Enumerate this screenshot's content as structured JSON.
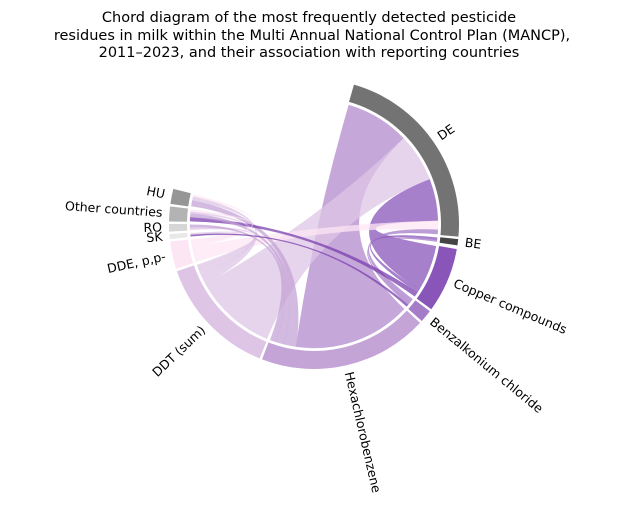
{
  "title": {
    "lines": [
      "Chord diagram of the most frequently detected pesticide",
      "residues in milk within the Multi Annual National Control Plan (MANCP),",
      "2011–2023, and their association with reporting countries"
    ]
  },
  "segments": [
    {
      "id": "DE",
      "label": "DE",
      "group": "country",
      "color": "#737373",
      "start": 16,
      "end": 95
    },
    {
      "id": "BE",
      "label": "BE",
      "group": "country",
      "color": "#454545",
      "start": 96,
      "end": 98.5
    },
    {
      "id": "copper",
      "label": "Copper compounds",
      "group": "residue",
      "color": "#8a55b9",
      "start": 100,
      "end": 126
    },
    {
      "id": "benzalkonium",
      "label": "Benzalkonium chloride",
      "group": "residue",
      "color": "#a57cc8",
      "start": 127,
      "end": 132
    },
    {
      "id": "hcb",
      "label": "Hexachlorobenzene",
      "group": "residue",
      "color": "#c4a3d6",
      "start": 133,
      "end": 201
    },
    {
      "id": "ddt",
      "label": "DDT (sum)",
      "group": "residue",
      "color": "#dec5e6",
      "start": 202,
      "end": 251
    },
    {
      "id": "dde",
      "label": "DDE, p,p-",
      "group": "residue",
      "color": "#fde6f4",
      "start": 252,
      "end": 263
    },
    {
      "id": "sk",
      "label": "SK",
      "group": "country",
      "color": "#e8e8e8",
      "start": 264,
      "end": 266
    },
    {
      "id": "ro",
      "label": "RO",
      "group": "country",
      "color": "#d6d6d6",
      "start": 267,
      "end": 270
    },
    {
      "id": "other",
      "label": "Other countries",
      "group": "country",
      "color": "#b3b3b3",
      "start": 271,
      "end": 277
    },
    {
      "id": "hu",
      "label": "HU",
      "group": "country",
      "color": "#969696",
      "start": 278,
      "end": 284
    }
  ],
  "links": [
    {
      "from": "DE",
      "to": "hcb",
      "value": 29,
      "color": "#b289cc"
    },
    {
      "from": "DE",
      "to": "ddt",
      "value": 22,
      "color": "#dec5e6"
    },
    {
      "from": "DE",
      "to": "copper",
      "value": 19,
      "color": "#8a55b9"
    },
    {
      "from": "DE",
      "to": "dde",
      "value": 4,
      "color": "#fde6f4"
    },
    {
      "from": "DE",
      "to": "benzalkonium",
      "value": 2,
      "color": "#a57cc8"
    },
    {
      "from": "BE",
      "to": "copper",
      "value": 1.5,
      "color": "#8a55b9"
    },
    {
      "from": "BE",
      "to": "benzalkonium",
      "value": 1,
      "color": "#a57cc8"
    },
    {
      "from": "HU",
      "to": "hcb",
      "value": 3,
      "color": "#c4a3d6"
    },
    {
      "from": "HU",
      "to": "ddt",
      "value": 2,
      "color": "#dec5e6"
    },
    {
      "from": "HU",
      "to": "dde",
      "value": 1,
      "color": "#fde6f4"
    },
    {
      "from": "other",
      "to": "copper",
      "value": 2,
      "color": "#7a3fae"
    },
    {
      "from": "other",
      "to": "hcb",
      "value": 2,
      "color": "#c4a3d6"
    },
    {
      "from": "other",
      "to": "ddt",
      "value": 1,
      "color": "#dec5e6"
    },
    {
      "from": "other",
      "to": "dde",
      "value": 1,
      "color": "#fde6f4"
    },
    {
      "from": "RO",
      "to": "ddt",
      "value": 1.5,
      "color": "#dec5e6"
    },
    {
      "from": "RO",
      "to": "hcb",
      "value": 1.5,
      "color": "#c4a3d6"
    },
    {
      "from": "SK",
      "to": "benzalkonium",
      "value": 1,
      "color": "#7a3fae"
    },
    {
      "from": "SK",
      "to": "ddt",
      "value": 1,
      "color": "#dec5e6"
    }
  ]
}
